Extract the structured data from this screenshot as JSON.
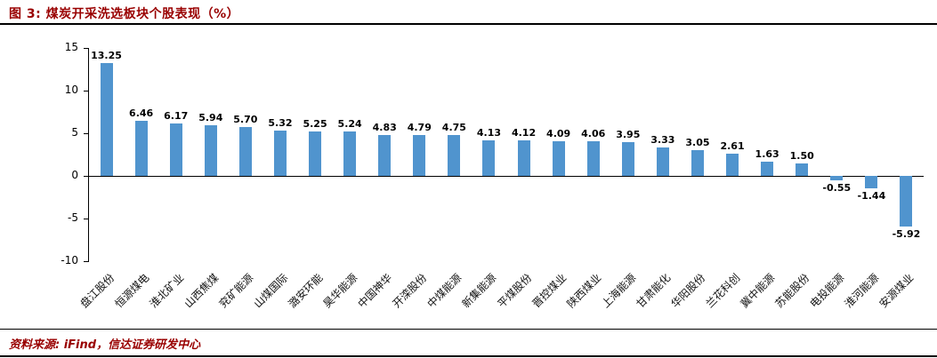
{
  "figure": {
    "title": "图 3: 煤炭开采洗选板块个股表现（%）",
    "source": "资料来源: iFind，信达证券研发中心"
  },
  "colors": {
    "title_red": "#990000",
    "bar_blue": "#5094ce",
    "axis_black": "#000000"
  },
  "chart_data": {
    "type": "bar",
    "title": "煤炭开采洗选板块个股表现（%）",
    "categories": [
      "盘江股份",
      "恒源煤电",
      "淮北矿业",
      "山西焦煤",
      "兖矿能源",
      "山煤国际",
      "潞安环能",
      "昊华能源",
      "中国神华",
      "开滦股份",
      "中煤能源",
      "新集能源",
      "平煤股份",
      "晋控煤业",
      "陕西煤业",
      "上海能源",
      "甘肃能化",
      "华阳股份",
      "兰花科创",
      "冀中能源",
      "苏能股份",
      "电投能源",
      "淮河能源",
      "安源煤业"
    ],
    "values": [
      13.25,
      6.46,
      6.17,
      5.94,
      5.7,
      5.32,
      5.25,
      5.24,
      4.83,
      4.79,
      4.75,
      4.13,
      4.12,
      4.09,
      4.06,
      3.95,
      3.33,
      3.05,
      2.61,
      1.63,
      1.5,
      -0.55,
      -1.44,
      -5.92
    ],
    "labels": [
      "13.25",
      "6.46",
      "6.17",
      "5.94",
      "5.70",
      "5.32",
      "5.25",
      "5.24",
      "4.83",
      "4.79",
      "4.75",
      "4.13",
      "4.12",
      "4.09",
      "4.06",
      "3.95",
      "3.33",
      "3.05",
      "2.61",
      "1.63",
      "1.50",
      "-0.55",
      "-1.44",
      "-5.92"
    ],
    "ylim": [
      -10,
      15
    ],
    "yticks": [
      15,
      10,
      5,
      0,
      -5,
      -10
    ],
    "grid": false,
    "legend": "none",
    "bar_color": "#5094ce",
    "label_position": "outside-end"
  }
}
